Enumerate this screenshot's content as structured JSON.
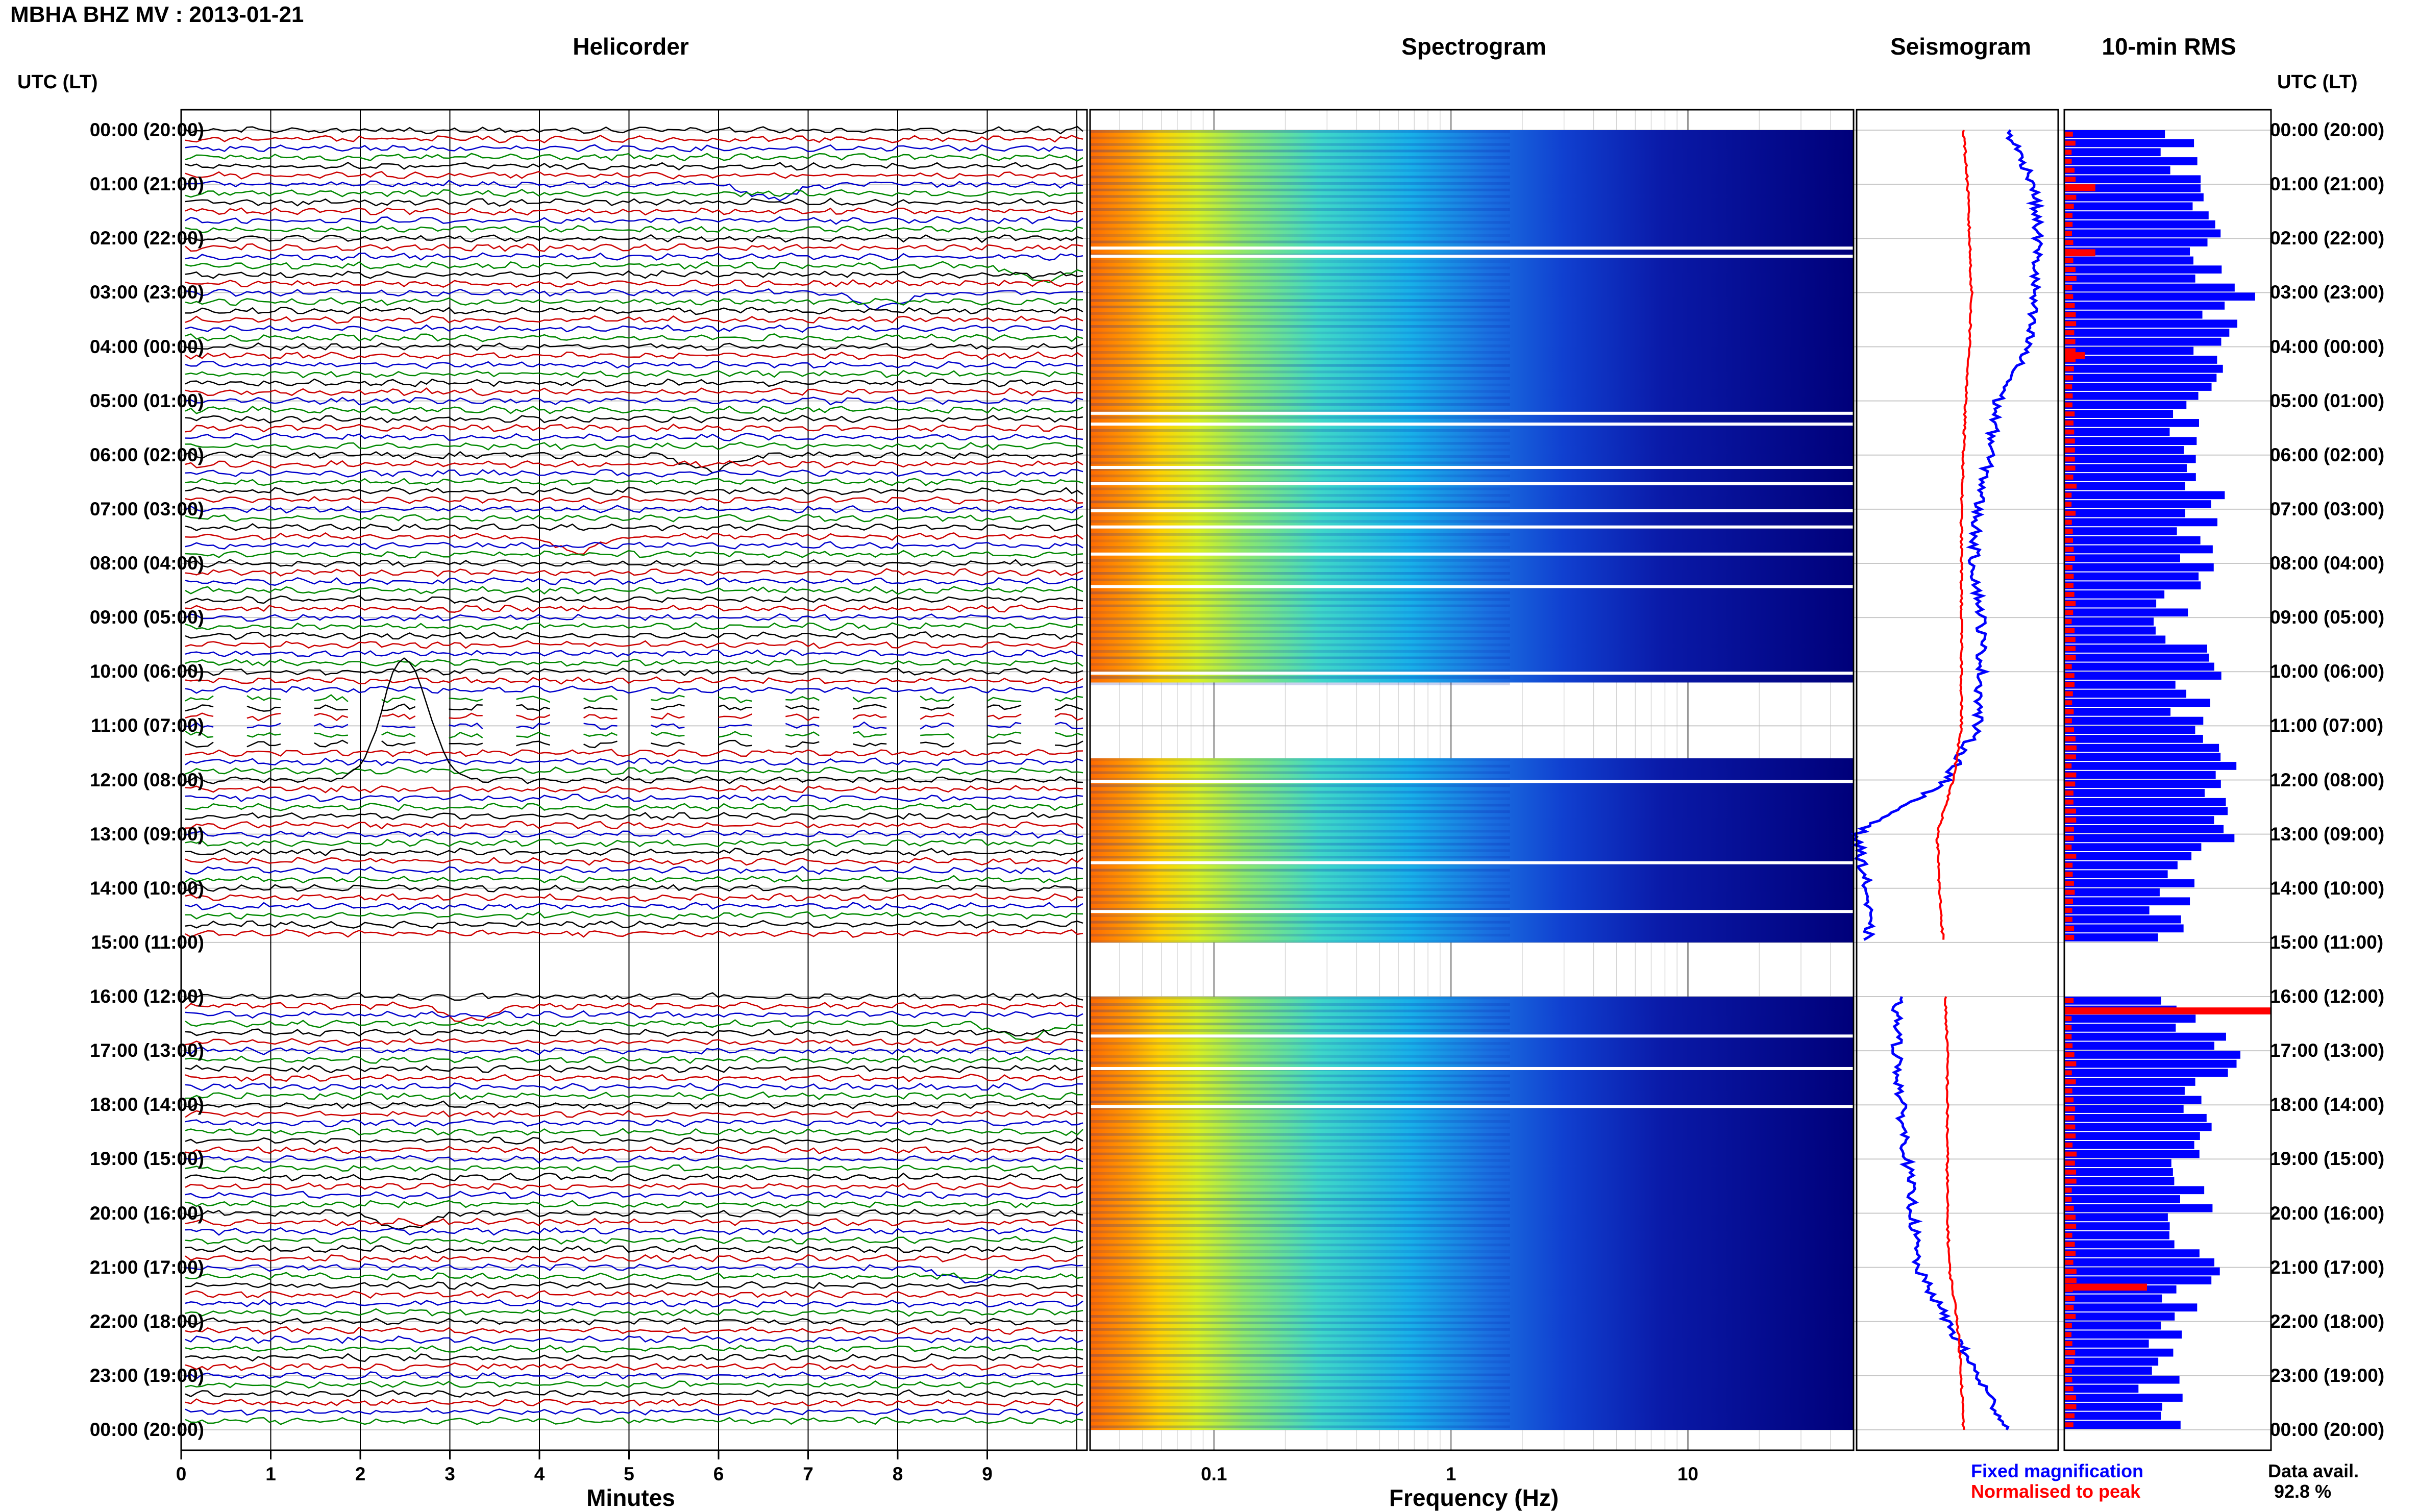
{
  "header": {
    "title": "MBHA BHZ MV : 2013-01-21"
  },
  "panels": {
    "helicorder": "Helicorder",
    "spectrogram": "Spectrogram",
    "seismogram": "Seismogram",
    "rms": "10-min RMS"
  },
  "axis_heads": {
    "left": "UTC (LT)",
    "right": "UTC (LT)"
  },
  "time_labels": [
    "00:00 (20:00)",
    "01:00 (21:00)",
    "02:00 (22:00)",
    "03:00 (23:00)",
    "04:00 (00:00)",
    "05:00 (01:00)",
    "06:00 (02:00)",
    "07:00 (03:00)",
    "08:00 (04:00)",
    "09:00 (05:00)",
    "10:00 (06:00)",
    "11:00 (07:00)",
    "12:00 (08:00)",
    "13:00 (09:00)",
    "14:00 (10:00)",
    "15:00 (11:00)",
    "16:00 (12:00)",
    "17:00 (13:00)",
    "18:00 (14:00)",
    "19:00 (15:00)",
    "20:00 (16:00)",
    "21:00 (17:00)",
    "22:00 (18:00)",
    "23:00 (19:00)",
    "00:00 (20:00)"
  ],
  "helicorder_axis": {
    "label": "Minutes",
    "ticks": [
      "0",
      "1",
      "2",
      "3",
      "4",
      "5",
      "6",
      "7",
      "8",
      "9"
    ]
  },
  "spectrogram_axis": {
    "label": "Frequency (Hz)",
    "ticks": [
      "0.1",
      "1",
      "10"
    ],
    "scale": "log"
  },
  "legend": {
    "fixed": "Fixed magnification",
    "normalised": "Normalised to peak",
    "avail_label": "Data avail.",
    "avail_value": "92.8 %"
  },
  "colors": {
    "trace_cycle": [
      "#000000",
      "#cc0000",
      "#0000cc",
      "#008800"
    ],
    "fixed": "#0000ff",
    "normalised": "#ff0000"
  },
  "chart_data": [
    {
      "type": "line",
      "title": "Helicorder",
      "xlabel": "Minutes",
      "xlim": [
        0,
        10
      ],
      "rows_per_hour": 6,
      "gaps_utc_hours": [
        [
          10.4,
          11.4
        ],
        [
          15.0,
          16.0
        ]
      ],
      "events": [
        {
          "hour": 1.0,
          "minute": 6.6
        },
        {
          "hour": 2.5,
          "minute": 9.6
        },
        {
          "hour": 3.0,
          "minute": 7.8
        },
        {
          "hour": 6.0,
          "minute": 5.9
        },
        {
          "hour": 7.5,
          "minute": 4.4
        },
        {
          "hour": 12.0,
          "minute": 2.5
        },
        {
          "hour": 16.2,
          "minute": 3.2
        },
        {
          "hour": 16.5,
          "minute": 9.4
        },
        {
          "hour": 20.0,
          "minute": 2.5
        },
        {
          "hour": 21.0,
          "minute": 8.8
        }
      ]
    },
    {
      "type": "heatmap",
      "title": "Spectrogram",
      "xlabel": "Frequency (Hz)",
      "xscale": "log",
      "xlim": [
        0.03,
        50
      ],
      "gaps_utc_hours": [
        [
          10.2,
          11.6
        ],
        [
          15.0,
          16.0
        ]
      ]
    },
    {
      "type": "line",
      "title": "Seismogram",
      "series": [
        {
          "name": "Fixed magnification",
          "x_hours": [
            0,
            1,
            2,
            3,
            4,
            5,
            6,
            7,
            8,
            9,
            10,
            11,
            12,
            13,
            14,
            15,
            16,
            17,
            18,
            19,
            20,
            21,
            22,
            23,
            24
          ],
          "values": [
            0.75,
            0.88,
            0.9,
            0.88,
            0.85,
            0.7,
            0.66,
            0.6,
            0.58,
            0.62,
            0.62,
            0.6,
            0.45,
            0.0,
            0.05,
            0.06,
            0.2,
            0.2,
            0.22,
            0.25,
            0.28,
            0.3,
            0.45,
            0.6,
            0.75
          ]
        },
        {
          "name": "Normalised to peak",
          "x_hours": [
            0,
            1,
            2,
            3,
            4,
            5,
            6,
            7,
            8,
            9,
            10,
            11,
            12,
            13,
            14,
            15,
            16,
            17,
            18,
            19,
            20,
            21,
            22,
            23,
            24
          ],
          "values": [
            0.53,
            0.55,
            0.56,
            0.57,
            0.56,
            0.54,
            0.53,
            0.52,
            0.52,
            0.52,
            0.52,
            0.52,
            0.48,
            0.4,
            0.41,
            0.43,
            0.44,
            0.45,
            0.45,
            0.45,
            0.45,
            0.46,
            0.5,
            0.52,
            0.53
          ]
        }
      ]
    },
    {
      "type": "bar",
      "title": "10-min RMS",
      "series": [
        {
          "name": "Fixed magnification",
          "x_hours": [
            0,
            1,
            2,
            3,
            4,
            5,
            6,
            7,
            8,
            9,
            10,
            11,
            12,
            13,
            14,
            15,
            16,
            17,
            18,
            19,
            20,
            21,
            22,
            23,
            24
          ],
          "values": [
            0.5,
            0.7,
            0.62,
            0.8,
            0.75,
            0.55,
            0.6,
            0.7,
            0.6,
            0.55,
            0.65,
            0.55,
            0.8,
            0.7,
            0.5,
            0.5,
            0.55,
            0.75,
            0.65,
            0.6,
            0.6,
            0.65,
            0.5,
            0.45,
            0.5
          ]
        },
        {
          "name": "Normalised to peak",
          "x_hours": [
            1,
            2.2,
            4.1,
            16.2,
            21.3
          ],
          "values": [
            0.15,
            0.15,
            0.1,
            1.0,
            0.4
          ]
        }
      ]
    }
  ]
}
